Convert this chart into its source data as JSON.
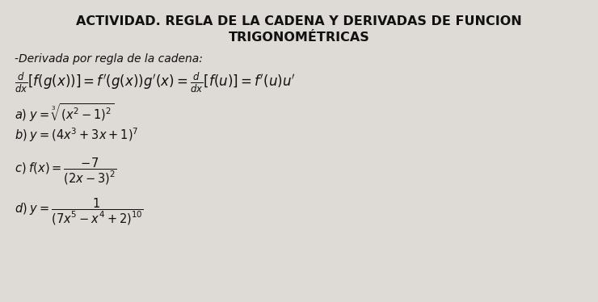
{
  "title_line1": "ACTIVIDAD. REGLA DE LA CADENA Y DERIVADAS DE FUNCION",
  "title_line2": "TRIGONOMÉTRICAS",
  "subtitle": "-Derivada por regla de la cadena:",
  "bg_color": "#dedad5",
  "text_color": "#111111",
  "title_fontsize": 11.5,
  "body_fontsize": 10.5,
  "subtitle_fontsize": 10
}
